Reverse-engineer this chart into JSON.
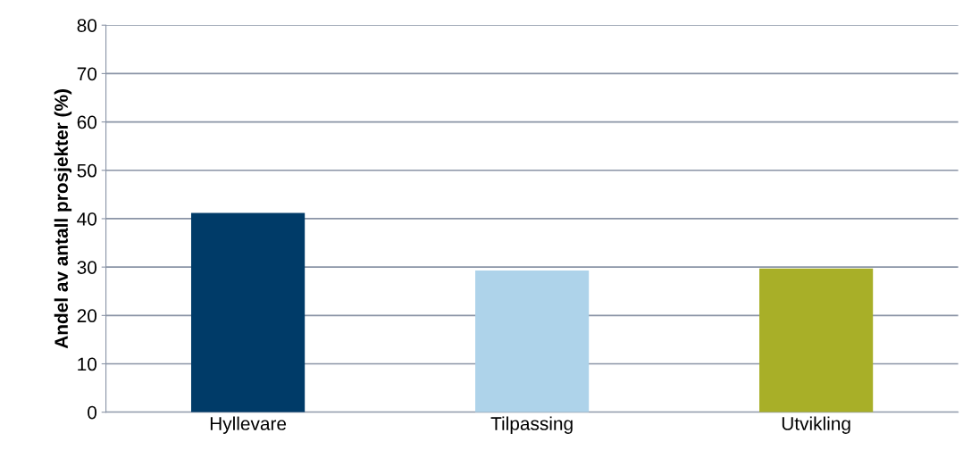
{
  "chart_data": {
    "type": "bar",
    "ylabel": "Andel av antall prosjekter (%)",
    "categories": [
      "Hyllevare",
      "Tilpassing",
      "Utvikling"
    ],
    "values": [
      41.2,
      29.3,
      29.7
    ],
    "colors": [
      "#003b68",
      "#aed3ea",
      "#a8af28"
    ],
    "ylim": [
      0,
      80
    ],
    "yticks": [
      0,
      10,
      20,
      30,
      40,
      50,
      60,
      70,
      80
    ],
    "grid": "y"
  }
}
